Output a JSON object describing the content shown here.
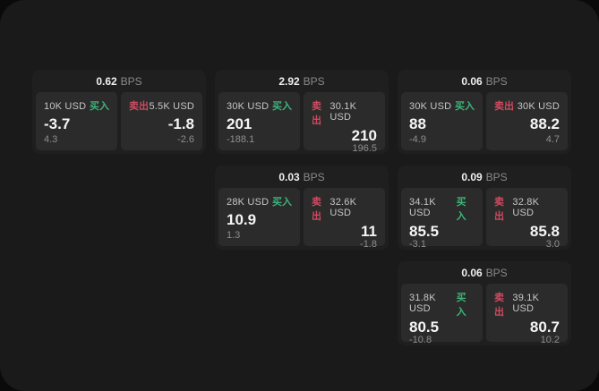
{
  "labels": {
    "bps": "BPS",
    "buy": "买入",
    "sell": "卖出"
  },
  "colors": {
    "buy": "#3eb37a",
    "sell": "#ce4a5f",
    "window_bg": "#1a1a1a",
    "card_bg": "#1f1f1f",
    "panel_bg": "#2b2b2b"
  },
  "cards": [
    {
      "col": 1,
      "row": 1,
      "bps": "0.62",
      "buy": {
        "amount": "10K USD",
        "value": "-3.7",
        "delta": "4.3"
      },
      "sell": {
        "amount": "5.5K USD",
        "value": "-1.8",
        "delta": "-2.6"
      }
    },
    {
      "col": 2,
      "row": 1,
      "bps": "2.92",
      "buy": {
        "amount": "30K USD",
        "value": "201",
        "delta": "-188.1"
      },
      "sell": {
        "amount": "30.1K USD",
        "value": "210",
        "delta": "196.5"
      }
    },
    {
      "col": 3,
      "row": 1,
      "bps": "0.06",
      "buy": {
        "amount": "30K USD",
        "value": "88",
        "delta": "-4.9"
      },
      "sell": {
        "amount": "30K USD",
        "value": "88.2",
        "delta": "4.7"
      }
    },
    {
      "col": 2,
      "row": 2,
      "bps": "0.03",
      "buy": {
        "amount": "28K USD",
        "value": "10.9",
        "delta": "1.3"
      },
      "sell": {
        "amount": "32.6K USD",
        "value": "11",
        "delta": "-1.8"
      }
    },
    {
      "col": 3,
      "row": 2,
      "bps": "0.09",
      "buy": {
        "amount": "34.1K USD",
        "value": "85.5",
        "delta": "-3.1"
      },
      "sell": {
        "amount": "32.8K USD",
        "value": "85.8",
        "delta": "3.0"
      }
    },
    {
      "col": 3,
      "row": 3,
      "bps": "0.06",
      "buy": {
        "amount": "31.8K USD",
        "value": "80.5",
        "delta": "-10.8"
      },
      "sell": {
        "amount": "39.1K USD",
        "value": "80.7",
        "delta": "10.2"
      }
    }
  ]
}
